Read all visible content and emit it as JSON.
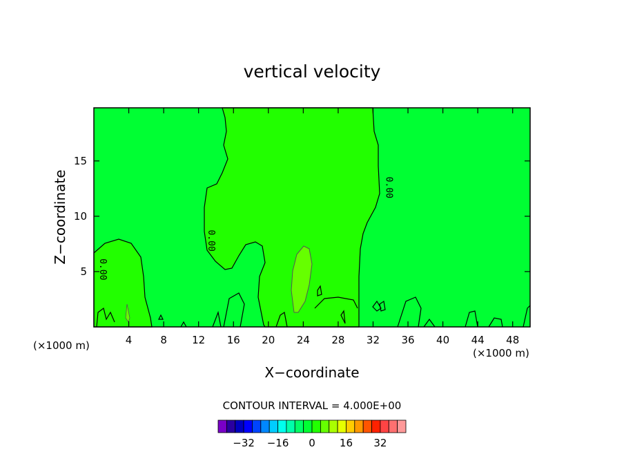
{
  "chart_data": {
    "type": "heatmap",
    "title": "vertical velocity",
    "xlabel": "X−coordinate",
    "ylabel": "Z−coordinate",
    "x_unit": "(×1000 m)",
    "xlim": [
      0,
      50
    ],
    "ylim": [
      0,
      19.8
    ],
    "x_ticks": [
      {
        "value": 4,
        "label": "4"
      },
      {
        "value": 8,
        "label": "8"
      },
      {
        "value": 12,
        "label": "12"
      },
      {
        "value": 16,
        "label": "16"
      },
      {
        "value": 20,
        "label": "20"
      },
      {
        "value": 24,
        "label": "24"
      },
      {
        "value": 28,
        "label": "28"
      },
      {
        "value": 32,
        "label": "32"
      },
      {
        "value": 36,
        "label": "36"
      },
      {
        "value": 40,
        "label": "40"
      },
      {
        "value": 44,
        "label": "44"
      },
      {
        "value": 48,
        "label": "48"
      }
    ],
    "y_ticks": [
      {
        "value": 5,
        "label": "5"
      },
      {
        "value": 10,
        "label": "10"
      },
      {
        "value": 15,
        "label": "15"
      }
    ],
    "contour_interval_text": "CONTOUR INTERVAL = 4.000E+00",
    "contour_labels": [
      {
        "text": "0.00",
        "x": 33.2,
        "y": 12.6
      },
      {
        "text": "0.00",
        "x": 12.8,
        "y": 7.8
      },
      {
        "text": "0.00",
        "x": 0.4,
        "y": 5.2
      }
    ],
    "regions": [
      {
        "name": "background",
        "value_range": [
          -4,
          0
        ],
        "color": "#00ff33"
      },
      {
        "name": "central updraft",
        "value_range": [
          0,
          4
        ],
        "color": "#22ff00"
      },
      {
        "name": "low-level updraft",
        "value_range": [
          0,
          4
        ],
        "color": "#22ff00"
      },
      {
        "name": "updraft core",
        "value_range": [
          4,
          8
        ],
        "color": "#66ff00"
      }
    ],
    "colorbar": {
      "colors": [
        "#7a00c8",
        "#2a00a0",
        "#0000c0",
        "#0000ff",
        "#0044ff",
        "#0088ff",
        "#00ccff",
        "#00ffee",
        "#00ffaa",
        "#00ff66",
        "#00ff33",
        "#22ff00",
        "#66ff00",
        "#aaff00",
        "#e6ff00",
        "#ffcc00",
        "#ff9900",
        "#ff5500",
        "#ff2200",
        "#ff4444",
        "#ff7070",
        "#ff9999"
      ],
      "tick_labels": [
        {
          "value": -32,
          "label": "−32"
        },
        {
          "value": -16,
          "label": "−16"
        },
        {
          "value": 0,
          "label": "0"
        },
        {
          "value": 16,
          "label": "16"
        },
        {
          "value": 32,
          "label": "32"
        }
      ]
    }
  }
}
